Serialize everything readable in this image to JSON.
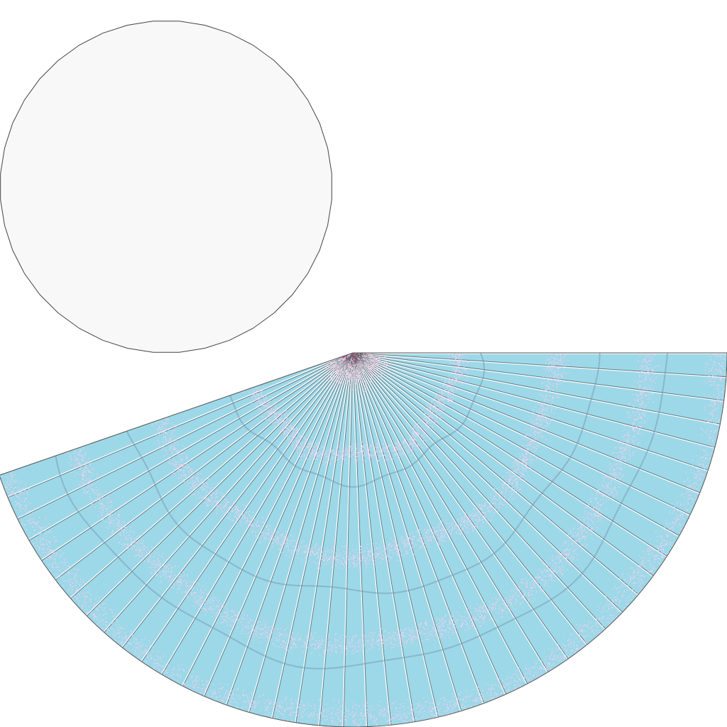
{
  "colors": {
    "background": "#ffffff",
    "disk_fill": "#f8f8f8",
    "disk_stroke": "#444444",
    "fan_fill": "#9dd8e8",
    "spoke_dark": "#5a6a70",
    "spoke_light": "#ffffff",
    "speckle": "#ffd0ee",
    "contour": "#6f90a8",
    "outline": "#555555"
  },
  "shapes": {
    "disk": {
      "kind": "polygon-circle",
      "sides": 40
    },
    "fan": {
      "kind": "sector",
      "spoke_count": 44,
      "speckle_rings": 5,
      "contour_rings": 3
    }
  }
}
